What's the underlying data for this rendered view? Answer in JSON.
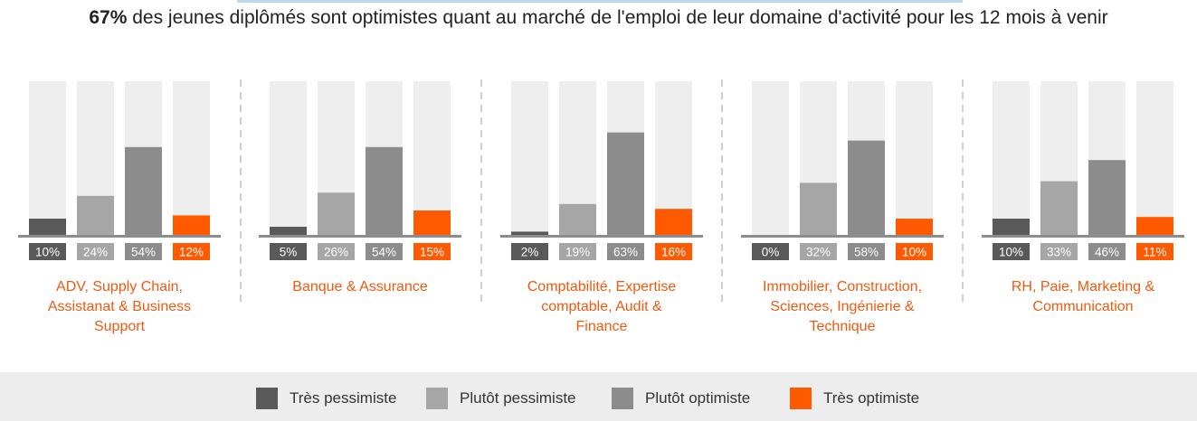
{
  "title": {
    "highlight": "67%",
    "rest": " des jeunes diplômés sont optimistes quant au marché de l'emploi de leur domaine d'activité pour les 12 mois à venir"
  },
  "colors": {
    "tres_pessimiste": "#595959",
    "plutot_pessimiste": "#a6a6a6",
    "plutot_optimiste": "#8c8c8c",
    "tres_optimiste": "#ff5a00",
    "track": "#eeeeee",
    "group_label": "#f05a0f"
  },
  "legend": [
    {
      "name": "Très pessimiste",
      "color": "#595959"
    },
    {
      "name": "Plutôt pessimiste",
      "color": "#a6a6a6"
    },
    {
      "name": "Plutôt optimiste",
      "color": "#8c8c8c"
    },
    {
      "name": "Très optimiste",
      "color": "#ff5a00"
    }
  ],
  "chart_data": {
    "type": "bar",
    "title": "67% des jeunes diplômés sont optimistes quant au marché de l'emploi de leur domaine d'activité pour les 12 mois à venir",
    "categories": [
      "ADV, Supply Chain, Assistanat & Business Support",
      "Banque & Assurance",
      "Comptabilité, Expertise comptable, Audit & Finance",
      "Immobilier, Construction, Sciences, Ingénierie & Technique",
      "RH, Paie, Marketing & Communication"
    ],
    "category_lines": [
      [
        "ADV, Supply Chain,",
        "Assistanat & Business",
        "Support"
      ],
      [
        "Banque & Assurance"
      ],
      [
        "Comptabilité, Expertise",
        "comptable, Audit &",
        "Finance"
      ],
      [
        "Immobilier, Construction,",
        "Sciences, Ingénierie &",
        "Technique"
      ],
      [
        "RH, Paie, Marketing &",
        "Communication"
      ]
    ],
    "series": [
      {
        "name": "Très pessimiste",
        "values": [
          10,
          5,
          2,
          0,
          10
        ]
      },
      {
        "name": "Plutôt pessimiste",
        "values": [
          24,
          26,
          19,
          32,
          33
        ]
      },
      {
        "name": "Plutôt optimiste",
        "values": [
          54,
          54,
          63,
          58,
          46
        ]
      },
      {
        "name": "Très optimiste",
        "values": [
          12,
          15,
          16,
          10,
          11
        ]
      }
    ],
    "value_labels": [
      [
        "10%",
        "24%",
        "54%",
        "12%"
      ],
      [
        "5%",
        "26%",
        "54%",
        "15%"
      ],
      [
        "2%",
        "19%",
        "63%",
        "16%"
      ],
      [
        "0%",
        "32%",
        "58%",
        "10%"
      ],
      [
        "10%",
        "33%",
        "46%",
        "11%"
      ]
    ],
    "ylim": [
      0,
      100
    ],
    "unit": "%",
    "grid": false,
    "legend_position": "bottom"
  }
}
